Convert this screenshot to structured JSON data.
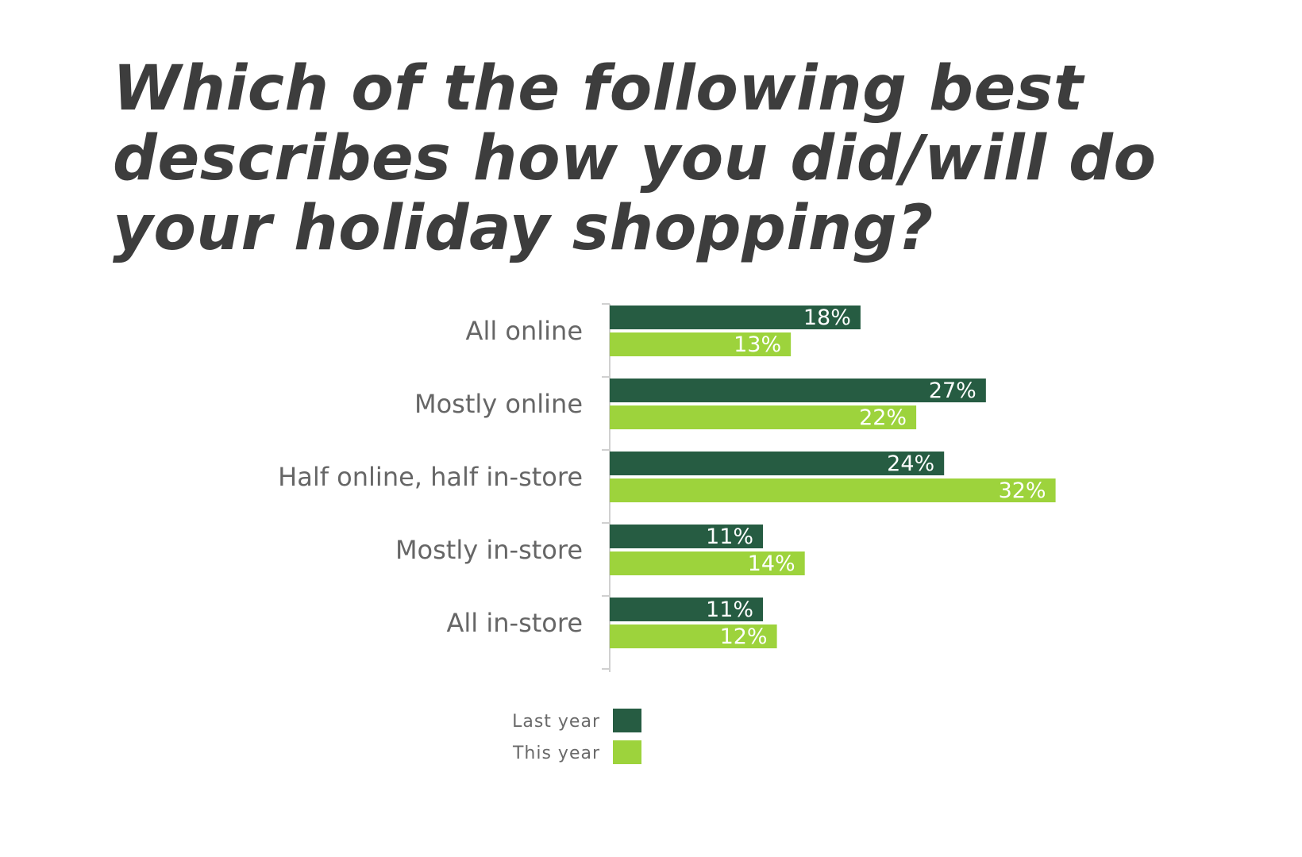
{
  "title": "Which of the following best describes how you did/will do your holiday shopping?",
  "colors": {
    "last_year": "#265c42",
    "this_year": "#9dd33c",
    "axis": "#d0d0d0",
    "label_text": "#666666"
  },
  "chart_data": {
    "type": "bar",
    "orientation": "horizontal",
    "title": "Which of the following best describes how you did/will do your holiday shopping?",
    "categories": [
      "All online",
      "Mostly online",
      "Half online, half in-store",
      "Mostly in-store",
      "All in-store"
    ],
    "series": [
      {
        "name": "Last year",
        "values": [
          18,
          27,
          24,
          11,
          11
        ],
        "labels": [
          "18%",
          "27%",
          "24%",
          "11%",
          "11%"
        ]
      },
      {
        "name": "This year",
        "values": [
          13,
          22,
          32,
          14,
          12
        ],
        "labels": [
          "13%",
          "22%",
          "32%",
          "14%",
          "12%"
        ]
      }
    ],
    "value_unit": "%",
    "grid": false,
    "legend_position": "bottom"
  }
}
